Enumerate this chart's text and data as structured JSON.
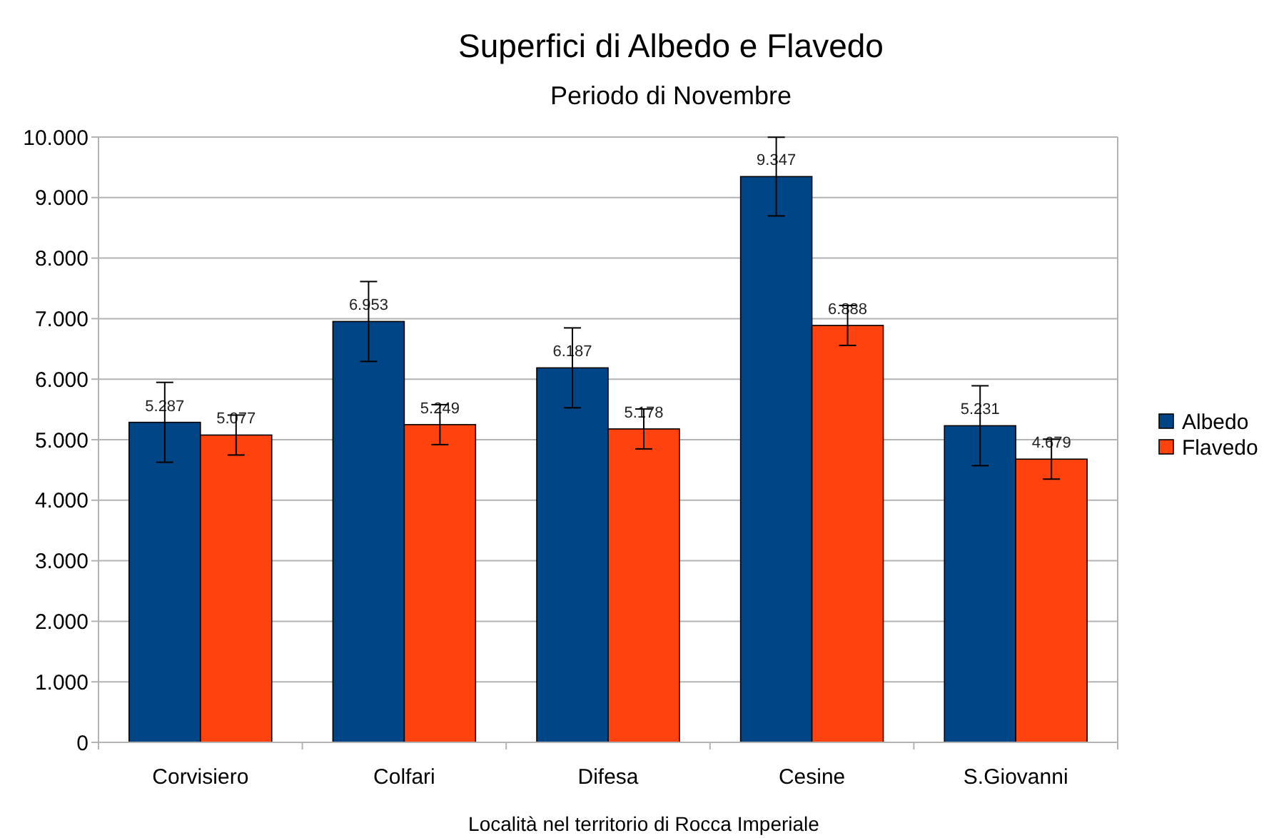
{
  "chart_data": {
    "type": "bar",
    "title": "Superfici di Albedo e Flavedo",
    "subtitle": "Periodo di Novembre",
    "xlabel": "Località nel territorio di Rocca Imperiale",
    "categories": [
      "Corvisiero",
      "Colfari",
      "Difesa",
      "Cesine",
      "S.Giovanni"
    ],
    "series": [
      {
        "name": "Albedo",
        "color": "#004586",
        "values": [
          5287,
          6953,
          6187,
          9347,
          5231
        ],
        "errors": [
          660,
          660,
          660,
          650,
          660
        ],
        "value_labels": [
          "5.287",
          "6.953",
          "6.187",
          "9.347",
          "5.231"
        ]
      },
      {
        "name": "Flavedo",
        "color": "#ff420e",
        "values": [
          5077,
          5249,
          5178,
          6888,
          4679
        ],
        "errors": [
          330,
          330,
          330,
          330,
          330
        ],
        "value_labels": [
          "5.077",
          "5.249",
          "5.178",
          "6.888",
          "4.679"
        ]
      }
    ],
    "ylim": [
      0,
      10000
    ],
    "yticks": [
      0,
      {
        "value": 1000,
        "label": "1.000"
      },
      {
        "value": 2000,
        "label": "2.000"
      },
      {
        "value": 3000,
        "label": "3.000"
      },
      {
        "value": 4000,
        "label": "4.000"
      },
      {
        "value": 5000,
        "label": "5.000"
      },
      {
        "value": 6000,
        "label": "6.000"
      },
      {
        "value": 7000,
        "label": "7.000"
      },
      {
        "value": 8000,
        "label": "8.000"
      },
      {
        "value": 9000,
        "label": "9.000"
      },
      {
        "value": 10000,
        "label": "10.000"
      }
    ],
    "grid": "y",
    "legend": "right"
  }
}
